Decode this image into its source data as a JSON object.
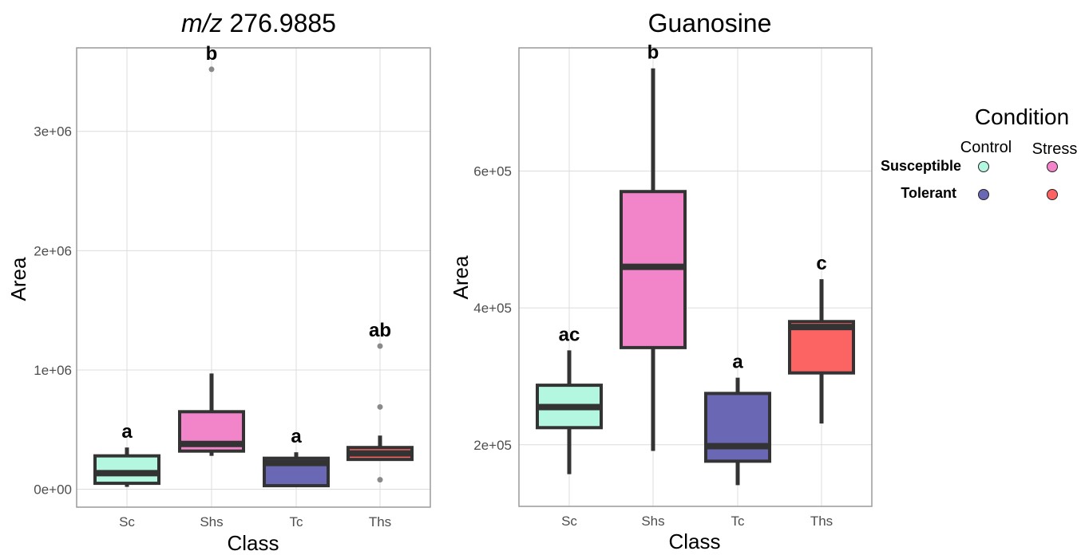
{
  "legend": {
    "title": "Condition",
    "columns": [
      "Control",
      "Stress"
    ],
    "rows": [
      "Susceptible",
      "Tolerant"
    ],
    "colors": {
      "Susceptible|Control": "#b3f7e1",
      "Susceptible|Stress": "#f285c9",
      "Tolerant|Control": "#6a68b5",
      "Tolerant|Stress": "#fc6464"
    }
  },
  "chart_data": [
    {
      "type": "box",
      "title_italic": "m/z",
      "title_rest": " 276.9885",
      "xlabel": "Class",
      "ylabel": "Area",
      "categories": [
        "Sc",
        "Shs",
        "Tc",
        "Ths"
      ],
      "colors": [
        "#b3f7e1",
        "#f285c9",
        "#6a68b5",
        "#fc6464"
      ],
      "ylim": [
        -150000,
        3700000
      ],
      "yticks": [
        0,
        1000000,
        2000000,
        3000000
      ],
      "yticklabels": [
        "0e+00",
        "1e+06",
        "2e+06",
        "3e+06"
      ],
      "boxes": [
        {
          "min": 20000,
          "q1": 50000,
          "median": 135000,
          "q3": 280000,
          "max": 350000,
          "outliers": []
        },
        {
          "min": 280000,
          "q1": 320000,
          "median": 380000,
          "q3": 650000,
          "max": 970000,
          "outliers": [
            3520000
          ]
        },
        {
          "min": 30000,
          "q1": 30000,
          "median": 220000,
          "q3": 260000,
          "max": 310000,
          "outliers": []
        },
        {
          "min": 250000,
          "q1": 250000,
          "median": 300000,
          "q3": 350000,
          "max": 450000,
          "outliers": [
            80000,
            690000,
            1200000
          ]
        }
      ],
      "letters": [
        "a",
        "b",
        "a",
        "ab"
      ]
    },
    {
      "type": "box",
      "title_italic": "",
      "title_rest": "Guanosine",
      "xlabel": "Class",
      "ylabel": "Area",
      "categories": [
        "Sc",
        "Shs",
        "Tc",
        "Ths"
      ],
      "colors": [
        "#b3f7e1",
        "#f285c9",
        "#6a68b5",
        "#fc6464"
      ],
      "ylim": [
        110000,
        780000
      ],
      "yticks": [
        200000,
        400000,
        600000
      ],
      "yticklabels": [
        "2e+05",
        "4e+05",
        "6e+05"
      ],
      "boxes": [
        {
          "min": 157000,
          "q1": 225000,
          "median": 255000,
          "q3": 287000,
          "max": 338000,
          "outliers": []
        },
        {
          "min": 191000,
          "q1": 342000,
          "median": 460000,
          "q3": 570000,
          "max": 750000,
          "outliers": []
        },
        {
          "min": 141000,
          "q1": 176000,
          "median": 198000,
          "q3": 275000,
          "max": 298000,
          "outliers": []
        },
        {
          "min": 231000,
          "q1": 305000,
          "median": 372000,
          "q3": 380000,
          "max": 442000,
          "outliers": []
        }
      ],
      "letters": [
        "ac",
        "b",
        "a",
        "c"
      ]
    }
  ]
}
